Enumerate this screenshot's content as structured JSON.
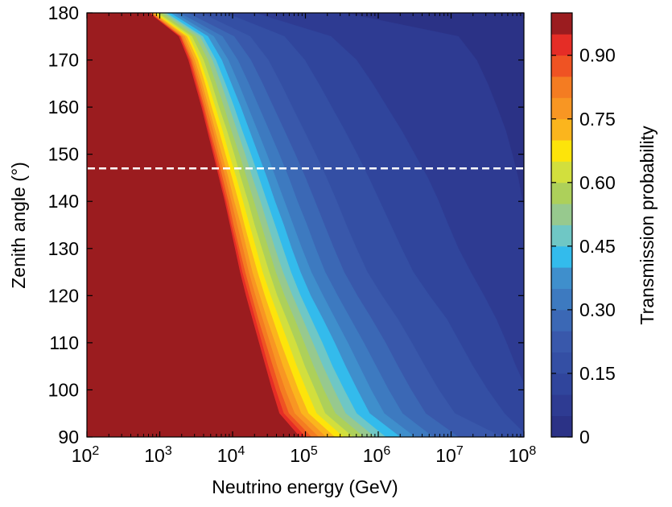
{
  "chart_data": {
    "type": "heatmap",
    "subtype": "filled-contour",
    "title": "",
    "xlabel": "Neutrino energy (GeV)",
    "ylabel": "Zenith angle (°)",
    "x_scale": "log",
    "x_unit": "GeV",
    "xlim": [
      100,
      100000000
    ],
    "ylim": [
      90,
      180
    ],
    "x_ticks": [
      {
        "value": 100,
        "base": "10",
        "exp": "2"
      },
      {
        "value": 1000,
        "base": "10",
        "exp": "3"
      },
      {
        "value": 10000,
        "base": "10",
        "exp": "4"
      },
      {
        "value": 100000,
        "base": "10",
        "exp": "5"
      },
      {
        "value": 1000000,
        "base": "10",
        "exp": "6"
      },
      {
        "value": 10000000,
        "base": "10",
        "exp": "7"
      },
      {
        "value": 100000000,
        "base": "10",
        "exp": "8"
      }
    ],
    "y_ticks": [
      "90",
      "100",
      "110",
      "120",
      "130",
      "140",
      "150",
      "160",
      "170",
      "180"
    ],
    "colorbar": {
      "label": "Transmission probability",
      "range": [
        0,
        1
      ],
      "levels": 20,
      "ticks": [
        "0",
        "0.15",
        "0.30",
        "0.45",
        "0.60",
        "0.75",
        "0.90"
      ],
      "colors": [
        "#2b3286",
        "#2e3b92",
        "#30459c",
        "#344fa4",
        "#3958ab",
        "#3b68b5",
        "#3d7ac0",
        "#3f8fcc",
        "#33bbec",
        "#6fc7c5",
        "#97c98e",
        "#add05a",
        "#d2df3d",
        "#fde40a",
        "#fbb51d",
        "#f89623",
        "#f47c22",
        "#ef5323",
        "#e52d26",
        "#9b1c1f"
      ]
    },
    "contours": {
      "angles": [
        90,
        95,
        100,
        105,
        110,
        115,
        120,
        125,
        130,
        135,
        140,
        145,
        150,
        155,
        160,
        165,
        170,
        175,
        180
      ],
      "threshold_levels": [
        0.05,
        0.1,
        0.15,
        0.2,
        0.25,
        0.3,
        0.35,
        0.4,
        0.45,
        0.5,
        0.55,
        0.6,
        0.65,
        0.7,
        0.75,
        0.8,
        0.85,
        0.9,
        0.95
      ],
      "log10_energy_at_level": [
        [
          8.45,
          8.36,
          8.34,
          8.32,
          8.28,
          8.22,
          8.18,
          8.13,
          8.08,
          8.03,
          7.98,
          7.92,
          7.84,
          7.75,
          7.63,
          7.5,
          7.35,
          7.1,
          5.53
        ],
        [
          8.4,
          8.2,
          8.04,
          7.89,
          7.76,
          7.62,
          7.45,
          7.27,
          7.1,
          6.96,
          6.83,
          6.68,
          6.5,
          6.32,
          6.12,
          5.92,
          5.7,
          5.35,
          4.3
        ],
        [
          8.2,
          7.73,
          7.5,
          7.3,
          7.12,
          6.94,
          6.7,
          6.48,
          6.32,
          6.17,
          6.02,
          5.87,
          5.71,
          5.54,
          5.36,
          5.18,
          4.99,
          4.71,
          3.9
        ],
        [
          7.7,
          7.05,
          6.83,
          6.64,
          6.46,
          6.27,
          6.05,
          5.85,
          5.7,
          5.56,
          5.43,
          5.29,
          5.14,
          4.98,
          4.82,
          4.66,
          4.49,
          4.24,
          3.56
        ],
        [
          7.1,
          6.65,
          6.45,
          6.27,
          6.1,
          5.91,
          5.71,
          5.53,
          5.39,
          5.26,
          5.13,
          5.0,
          4.86,
          4.71,
          4.56,
          4.41,
          4.25,
          4.02,
          3.38
        ],
        [
          6.75,
          6.33,
          6.14,
          5.97,
          5.8,
          5.62,
          5.44,
          5.27,
          5.14,
          5.02,
          4.89,
          4.77,
          4.64,
          4.5,
          4.36,
          4.22,
          4.07,
          3.86,
          3.27
        ],
        [
          6.5,
          6.08,
          5.9,
          5.74,
          5.58,
          5.41,
          5.24,
          5.08,
          4.95,
          4.83,
          4.71,
          4.59,
          4.47,
          4.34,
          4.21,
          4.08,
          3.94,
          3.74,
          3.2
        ],
        [
          6.3,
          5.88,
          5.71,
          5.55,
          5.4,
          5.24,
          5.07,
          4.93,
          4.81,
          4.7,
          4.58,
          4.47,
          4.35,
          4.23,
          4.11,
          3.98,
          3.85,
          3.66,
          3.14
        ],
        [
          6.1,
          5.7,
          5.53,
          5.37,
          5.23,
          5.08,
          4.93,
          4.8,
          4.69,
          4.58,
          4.47,
          4.36,
          4.25,
          4.13,
          4.02,
          3.9,
          3.77,
          3.59,
          3.09
        ],
        [
          5.95,
          5.55,
          5.39,
          5.24,
          5.1,
          4.96,
          4.82,
          4.69,
          4.58,
          4.48,
          4.38,
          4.27,
          4.17,
          4.06,
          3.95,
          3.84,
          3.72,
          3.55,
          3.06
        ],
        [
          5.8,
          5.41,
          5.25,
          5.11,
          4.98,
          4.85,
          4.71,
          4.59,
          4.49,
          4.39,
          4.29,
          4.19,
          4.09,
          3.98,
          3.88,
          3.77,
          3.66,
          3.49,
          3.02
        ],
        [
          5.65,
          5.27,
          5.13,
          4.99,
          4.87,
          4.74,
          4.61,
          4.5,
          4.4,
          4.3,
          4.21,
          4.11,
          4.02,
          3.92,
          3.81,
          3.71,
          3.6,
          3.44,
          2.97
        ],
        [
          5.52,
          5.15,
          5.01,
          4.88,
          4.76,
          4.64,
          4.52,
          4.41,
          4.32,
          4.23,
          4.14,
          4.05,
          3.95,
          3.86,
          3.76,
          3.66,
          3.55,
          3.4,
          2.94
        ],
        [
          5.4,
          5.04,
          4.9,
          4.78,
          4.66,
          4.55,
          4.44,
          4.34,
          4.25,
          4.16,
          4.08,
          3.99,
          3.9,
          3.81,
          3.71,
          3.62,
          3.52,
          3.37,
          2.92
        ],
        [
          5.28,
          4.94,
          4.81,
          4.69,
          4.58,
          4.47,
          4.37,
          4.27,
          4.19,
          4.11,
          4.02,
          3.94,
          3.85,
          3.76,
          3.67,
          3.58,
          3.48,
          3.34,
          2.9
        ],
        [
          5.18,
          4.85,
          4.72,
          4.61,
          4.51,
          4.41,
          4.31,
          4.22,
          4.14,
          4.06,
          3.98,
          3.9,
          3.81,
          3.73,
          3.64,
          3.55,
          3.45,
          3.31,
          2.88
        ],
        [
          5.08,
          4.77,
          4.65,
          4.55,
          4.45,
          4.35,
          4.26,
          4.17,
          4.09,
          4.01,
          3.94,
          3.86,
          3.78,
          3.69,
          3.61,
          3.52,
          3.43,
          3.29,
          2.87
        ],
        [
          5.0,
          4.7,
          4.59,
          4.49,
          4.4,
          4.31,
          4.22,
          4.13,
          4.06,
          3.98,
          3.91,
          3.83,
          3.75,
          3.67,
          3.59,
          3.5,
          3.41,
          3.28,
          2.86
        ],
        [
          4.92,
          4.64,
          4.54,
          4.45,
          4.36,
          4.27,
          4.18,
          4.1,
          4.03,
          3.96,
          3.89,
          3.81,
          3.73,
          3.65,
          3.57,
          3.48,
          3.39,
          3.26,
          2.85
        ]
      ]
    },
    "reference_line": {
      "zenith_angle": 147,
      "style": "dashed",
      "color": "#ffffff"
    }
  }
}
